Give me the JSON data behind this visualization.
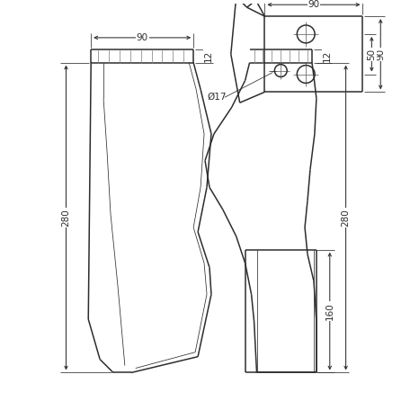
{
  "bg_color": "#ffffff",
  "lc": "#2d2d2d",
  "lw": 1.1,
  "tlw": 0.55,
  "dlw": 0.75,
  "fs": 7.5,
  "fig_w": 4.66,
  "fig_h": 4.66,
  "dpi": 100,
  "dims": {
    "front_width": "90",
    "front_thick": "12",
    "front_height": "280",
    "side_thick": "12",
    "side_height": "280",
    "side_bottom": "160",
    "side_diam": "Ø17",
    "top_width": "90",
    "top_height": "90",
    "top_hole_spacing": "50"
  }
}
